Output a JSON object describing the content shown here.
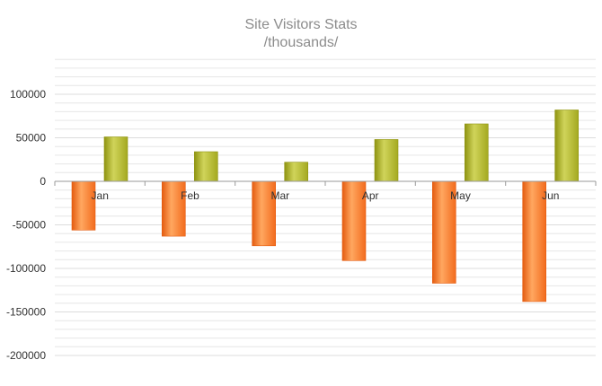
{
  "chart_data": {
    "type": "bar",
    "title": "Site Visitors Stats",
    "subtitle": "/thousands/",
    "categories": [
      "Jan",
      "Feb",
      "Mar",
      "Apr",
      "May",
      "Jun"
    ],
    "series": [
      {
        "values": [
          -56000,
          -63000,
          -74000,
          -91000,
          -117000,
          -138000
        ]
      },
      {
        "values": [
          51000,
          34000,
          22000,
          48000,
          66000,
          82000
        ]
      }
    ],
    "y_ticks": [
      100000,
      50000,
      0,
      -50000,
      -100000,
      -150000,
      -200000
    ],
    "ylim": [
      -200000,
      140000
    ],
    "grid": true,
    "legend": "none",
    "colors": {
      "series": [
        "#f26b1d",
        "#a4a920"
      ],
      "series_light": [
        "#ffa760",
        "#d0d45a"
      ],
      "series_dark": [
        "#e45c10",
        "#8f9412"
      ],
      "grid": "#e6e6e6",
      "axis": "#999999",
      "title": "#8c8c8c",
      "label": "#333333"
    }
  }
}
